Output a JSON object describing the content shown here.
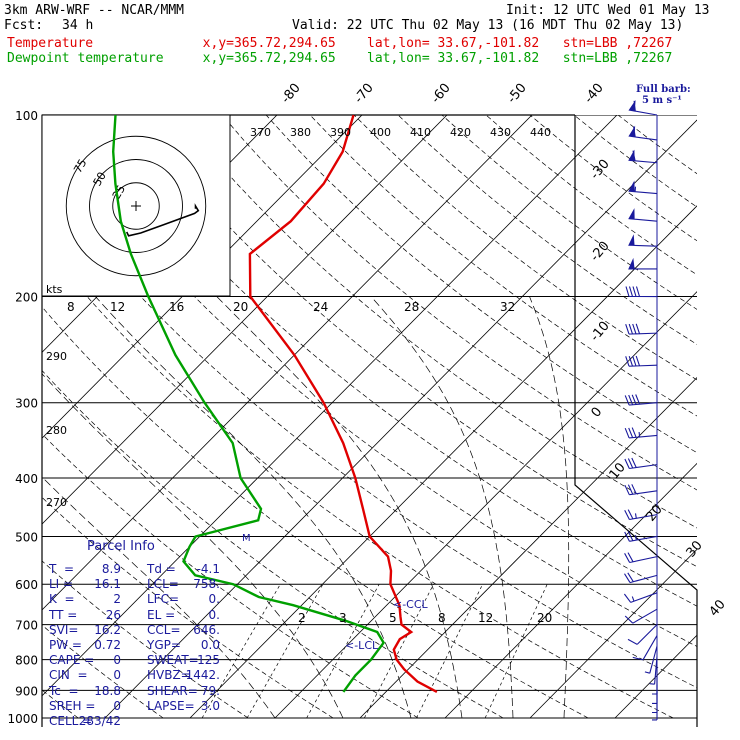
{
  "header": {
    "title": "3km ARW-WRF -- NCAR/MMM",
    "init": "Init: 12 UTC Wed 01 May 13",
    "fcst_label": "Fcst:",
    "fcst_value": "34 h",
    "valid": "Valid: 22 UTC Thu 02 May 13 (16 MDT Thu 02 May 13)",
    "temp_line": "Temperature              x,y=365.72,294.65    lat,lon= 33.67,-101.82   stn=LBB ,72267",
    "dew_line": "Dewpoint temperature     x,y=365.72,294.65    lat,lon= 33.67,-101.82   stn=LBB ,72267"
  },
  "colors": {
    "temperature": "#e00000",
    "dewpoint": "#00a000",
    "wind": "#1a1a9c",
    "hodograph": "#000000",
    "isotherm": "#000000"
  },
  "barb_legend": {
    "title": "Full barb:",
    "value": "5 m s⁻¹"
  },
  "chart_data": {
    "type": "line",
    "subtype": "skew-T log-P",
    "y_axis": {
      "label": "",
      "unit": "hPa",
      "scale": "log",
      "range": [
        1000,
        100
      ],
      "ticks": [
        100,
        200,
        300,
        400,
        500,
        600,
        700,
        800,
        900,
        1000
      ]
    },
    "isotherm_labels_top": [
      "-80",
      "-70",
      "-60",
      "-50",
      "-40"
    ],
    "isotherm_labels_right": [
      "-30",
      "-20",
      "-10",
      "0",
      "10",
      "20",
      "30",
      "40"
    ],
    "theta_labels": [
      "370",
      "380",
      "390",
      "400",
      "410",
      "420",
      "430",
      "440"
    ],
    "theta_labels_left": [
      "290",
      "280",
      "270"
    ],
    "mixing_ratio_labels_upper": [
      "8",
      "12",
      "16",
      "20",
      "24",
      "28",
      "32"
    ],
    "mixing_ratio_labels_lower": [
      "2",
      "3",
      "5",
      "8",
      "12",
      "20"
    ],
    "annotations": [
      "<-CCL",
      "<-LCL",
      "M"
    ],
    "series": [
      {
        "name": "Temperature",
        "unit": "degC",
        "p": [
          905,
          870,
          830,
          800,
          770,
          740,
          720,
          700,
          680,
          650,
          600,
          570,
          540,
          500,
          450,
          400,
          350,
          300,
          250,
          200,
          170,
          150,
          130,
          115,
          100
        ],
        "t": [
          16.0,
          12.5,
          9.5,
          7.5,
          6.0,
          5.5,
          6.0,
          4.0,
          3.0,
          1.5,
          -2.0,
          -3.5,
          -5.5,
          -10.0,
          -14.0,
          -18.5,
          -24.0,
          -31.0,
          -40.0,
          -52.0,
          -57.0,
          -56.0,
          -56.5,
          -58.0,
          -61.0
        ]
      },
      {
        "name": "Dewpoint temperature",
        "unit": "degC",
        "p": [
          905,
          850,
          800,
          750,
          720,
          690,
          650,
          630,
          600,
          580,
          550,
          520,
          500,
          470,
          450,
          400,
          350,
          300,
          250,
          200,
          170,
          150,
          130,
          115,
          100
        ],
        "t": [
          5.0,
          4.5,
          4.5,
          4.0,
          2.0,
          -3.0,
          -11.0,
          -16.0,
          -20.5,
          -26.0,
          -29.0,
          -30.0,
          -30.5,
          -25.0,
          -26.0,
          -32.0,
          -37.0,
          -45.0,
          -54.0,
          -64.0,
          -71.0,
          -76.0,
          -81.0,
          -85.0,
          -89.0
        ]
      }
    ]
  },
  "parcel_info": {
    "title": "Parcel Info",
    "rows": [
      [
        "T  =",
        "8.9",
        "Td =",
        "-4.1"
      ],
      [
        "LI =",
        "16.1",
        "LCL=",
        "758."
      ],
      [
        "K  =",
        "2",
        "LFC=",
        "0."
      ],
      [
        "TT =",
        "26",
        "EL =",
        "0."
      ],
      [
        "SVI=",
        "16.2",
        "CCL=",
        "646."
      ],
      [
        "PW =",
        "0.72",
        "YGP=",
        "0.0"
      ],
      [
        "CAPE =",
        "0",
        "SWEAT=",
        "125"
      ],
      [
        "CIN  =",
        "0",
        "HVBZ=",
        "1442."
      ],
      [
        "Tc  =",
        "18.8",
        "SHEAR=",
        "79."
      ],
      [
        "SREH =",
        "0",
        "LAPSE=",
        "3.0"
      ],
      [
        "CELL =",
        "283/42",
        "",
        ""
      ]
    ]
  },
  "hodograph": {
    "ring_labels": [
      "75",
      "50",
      "25"
    ],
    "speed_label": "kts",
    "trace_u": [
      -10,
      -8,
      5,
      30,
      63,
      67,
      64,
      64
    ],
    "trace_v": [
      -28,
      -32,
      -29,
      -20,
      -8,
      -5,
      0,
      -3
    ]
  },
  "wind_barbs": [
    {
      "p": 100,
      "dir": 280,
      "spd": 30
    },
    {
      "p": 110,
      "dir": 278,
      "spd": 32
    },
    {
      "p": 120,
      "dir": 275,
      "spd": 32
    },
    {
      "p": 135,
      "dir": 275,
      "spd": 28
    },
    {
      "p": 150,
      "dir": 275,
      "spd": 25
    },
    {
      "p": 165,
      "dir": 272,
      "spd": 25
    },
    {
      "p": 180,
      "dir": 270,
      "spd": 25
    },
    {
      "p": 200,
      "dir": 270,
      "spd": 22
    },
    {
      "p": 230,
      "dir": 268,
      "spd": 22
    },
    {
      "p": 260,
      "dir": 268,
      "spd": 20
    },
    {
      "p": 300,
      "dir": 265,
      "spd": 20
    },
    {
      "p": 340,
      "dir": 265,
      "spd": 18
    },
    {
      "p": 380,
      "dir": 262,
      "spd": 16
    },
    {
      "p": 420,
      "dir": 262,
      "spd": 15
    },
    {
      "p": 460,
      "dir": 260,
      "spd": 14
    },
    {
      "p": 500,
      "dir": 260,
      "spd": 13
    },
    {
      "p": 540,
      "dir": 258,
      "spd": 12
    },
    {
      "p": 580,
      "dir": 255,
      "spd": 11
    },
    {
      "p": 620,
      "dir": 250,
      "spd": 9
    },
    {
      "p": 660,
      "dir": 240,
      "spd": 7
    },
    {
      "p": 700,
      "dir": 225,
      "spd": 6
    },
    {
      "p": 730,
      "dir": 210,
      "spd": 5
    },
    {
      "p": 760,
      "dir": 195,
      "spd": 4
    },
    {
      "p": 790,
      "dir": 185,
      "spd": 4
    },
    {
      "p": 820,
      "dir": 180,
      "spd": 4
    },
    {
      "p": 850,
      "dir": 180,
      "spd": 4
    },
    {
      "p": 880,
      "dir": 180,
      "spd": 4
    },
    {
      "p": 905,
      "dir": 180,
      "spd": 4
    }
  ]
}
